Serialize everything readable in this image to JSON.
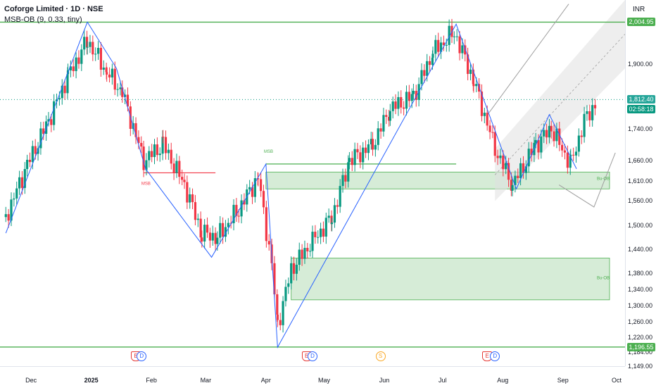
{
  "legend": {
    "symbol_line": "Coforge Limited · 1D · NSE",
    "indicator_line": "MSB-OB (9, 0.33, tiny)"
  },
  "price_axis": {
    "currency": "INR",
    "ticks": [
      "1,900.00",
      "1,740.00",
      "1,660.00",
      "1,610.00",
      "1,560.00",
      "1,500.00",
      "1,440.00",
      "1,380.00",
      "1,340.00",
      "1,300.00",
      "1,260.00",
      "1,220.00",
      "1,184.00",
      "1,149.00"
    ],
    "tags": {
      "resistance": "2,004.95",
      "last_price": "1,812.40",
      "countdown": "02:58:18",
      "support": "1,196.55"
    }
  },
  "time_axis": {
    "labels": [
      "Dec",
      "2025",
      "Feb",
      "Mar",
      "Apr",
      "May",
      "Jun",
      "Jul",
      "Aug",
      "Sep",
      "Oct"
    ]
  },
  "events": [
    "E",
    "D",
    "E",
    "D",
    "S",
    "E",
    "D"
  ],
  "annotations": {
    "msb_bear": "MSB",
    "msb_bull": "MSB",
    "ob_upper": "Bu-OB",
    "ob_lower": "Bu-OB"
  },
  "colors": {
    "up": "#089981",
    "down": "#f23645",
    "zigzag": "#2962ff",
    "level_line": "#4caf50",
    "ob_fill": "#c8e6c9",
    "channel": "#9e9e9e"
  },
  "chart_data": {
    "type": "candlestick",
    "interval": "1D",
    "x_range": [
      "2024-11-15",
      "2025-10-03"
    ],
    "ylim": [
      1149,
      2060
    ],
    "horizontal_levels": [
      2004.95,
      1196.55
    ],
    "order_blocks": [
      {
        "label": "Bu-OB",
        "low": 1590,
        "high": 1632
      },
      {
        "label": "Bu-OB",
        "low": 1314,
        "high": 1418
      }
    ],
    "msb_levels": [
      {
        "label": "MSB",
        "price": 1630,
        "direction": "bearish"
      },
      {
        "label": "MSB",
        "price": 1652,
        "direction": "bullish"
      }
    ],
    "zigzag_pivots": [
      [
        "2024-11-18",
        1480
      ],
      [
        "2024-12-30",
        2005
      ],
      [
        "2025-01-14",
        1890
      ],
      [
        "2025-01-29",
        1640
      ],
      [
        "2025-03-04",
        1420
      ],
      [
        "2025-04-01",
        1652
      ],
      [
        "2025-04-07",
        1196
      ],
      [
        "2025-07-08",
        2000
      ],
      [
        "2025-08-08",
        1590
      ],
      [
        "2025-08-25",
        1775
      ],
      [
        "2025-09-08",
        1640
      ]
    ],
    "last_price": 1812.4,
    "approx_closes": [
      [
        "2024-11-18",
        1520
      ],
      [
        "2024-11-29",
        1650
      ],
      [
        "2024-12-10",
        1760
      ],
      [
        "2024-12-20",
        1870
      ],
      [
        "2024-12-30",
        1960
      ],
      [
        "2025-01-09",
        1880
      ],
      [
        "2025-01-17",
        1830
      ],
      [
        "2025-01-28",
        1660
      ],
      [
        "2025-02-07",
        1700
      ],
      [
        "2025-02-18",
        1600
      ],
      [
        "2025-02-27",
        1480
      ],
      [
        "2025-03-07",
        1470
      ],
      [
        "2025-03-18",
        1540
      ],
      [
        "2025-03-28",
        1620
      ],
      [
        "2025-04-04",
        1400
      ],
      [
        "2025-04-07",
        1250
      ],
      [
        "2025-04-14",
        1390
      ],
      [
        "2025-04-25",
        1460
      ],
      [
        "2025-05-05",
        1520
      ],
      [
        "2025-05-14",
        1660
      ],
      [
        "2025-05-26",
        1700
      ],
      [
        "2025-06-04",
        1790
      ],
      [
        "2025-06-16",
        1820
      ],
      [
        "2025-06-26",
        1930
      ],
      [
        "2025-07-07",
        1980
      ],
      [
        "2025-07-17",
        1860
      ],
      [
        "2025-07-28",
        1690
      ],
      [
        "2025-08-06",
        1600
      ],
      [
        "2025-08-18",
        1700
      ],
      [
        "2025-08-26",
        1740
      ],
      [
        "2025-09-05",
        1650
      ],
      [
        "2025-09-12",
        1760
      ],
      [
        "2025-09-19",
        1812
      ]
    ]
  }
}
